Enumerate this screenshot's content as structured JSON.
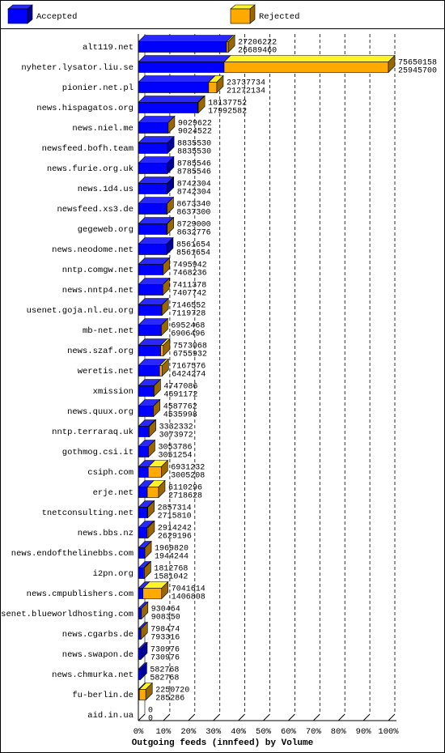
{
  "chart_data": {
    "type": "bar3d",
    "xlabel": "Outgoing feeds (innfeed) by Volume",
    "series": [
      {
        "name": "Accepted",
        "color": "#0000ff",
        "values": [
          26689460,
          25945700,
          21272134,
          17992582,
          9024522,
          8835530,
          8785546,
          8742304,
          8637300,
          8632776,
          8561654,
          7468236,
          7407742,
          7119728,
          6906496,
          6755932,
          6424274,
          4691172,
          4535998,
          3073972,
          3051254,
          3005208,
          2718628,
          2715810,
          2629196,
          1944244,
          1581042,
          1406808,
          908350,
          793316,
          730976,
          582768,
          285286,
          0
        ]
      },
      {
        "name": "Rejected",
        "color": "#ffaa00"
      }
    ],
    "totals": [
      27206222,
      75650158,
      23737734,
      18137752,
      9029622,
      8835530,
      8785546,
      8742304,
      8673340,
      8729000,
      8561654,
      7495942,
      7411378,
      7146552,
      6952468,
      7573068,
      7167576,
      4747086,
      4587762,
      3332332,
      3053786,
      6931232,
      6110296,
      2857314,
      2914242,
      1969820,
      1812768,
      7041614,
      930464,
      798474,
      730976,
      582768,
      2250720,
      0
    ],
    "categories": [
      "alt119.net",
      "nyheter.lysator.liu.se",
      "pionier.net.pl",
      "news.hispagatos.org",
      "news.niel.me",
      "newsfeed.bofh.team",
      "news.furie.org.uk",
      "news.1d4.us",
      "newsfeed.xs3.de",
      "gegeweb.org",
      "news.neodome.net",
      "nntp.comgw.net",
      "news.nntp4.net",
      "usenet.goja.nl.eu.org",
      "mb-net.net",
      "news.szaf.org",
      "weretis.net",
      "xmission",
      "news.quux.org",
      "nntp.terraraq.uk",
      "gothmog.csi.it",
      "csiph.com",
      "erje.net",
      "tnetconsulting.net",
      "news.bbs.nz",
      "news.endofthelinebbs.com",
      "i2pn.org",
      "news.cmpublishers.com",
      "usenet.blueworldhosting.com",
      "news.cgarbs.de",
      "news.swapon.de",
      "news.chmurka.net",
      "fu-berlin.de",
      "aid.in.ua"
    ],
    "xlim": [
      0,
      100
    ],
    "xticks": [
      {
        "value": 0,
        "label": "0%"
      },
      {
        "value": 10,
        "label": "10%"
      },
      {
        "value": 20,
        "label": "20%"
      },
      {
        "value": 30,
        "label": "30%"
      },
      {
        "value": 40,
        "label": "40%"
      },
      {
        "value": 50,
        "label": "50%"
      },
      {
        "value": 60,
        "label": "60%"
      },
      {
        "value": 70,
        "label": "70%"
      },
      {
        "value": 80,
        "label": "80%"
      },
      {
        "value": 90,
        "label": "90%"
      },
      {
        "value": 100,
        "label": "100%"
      }
    ],
    "grid": true
  }
}
